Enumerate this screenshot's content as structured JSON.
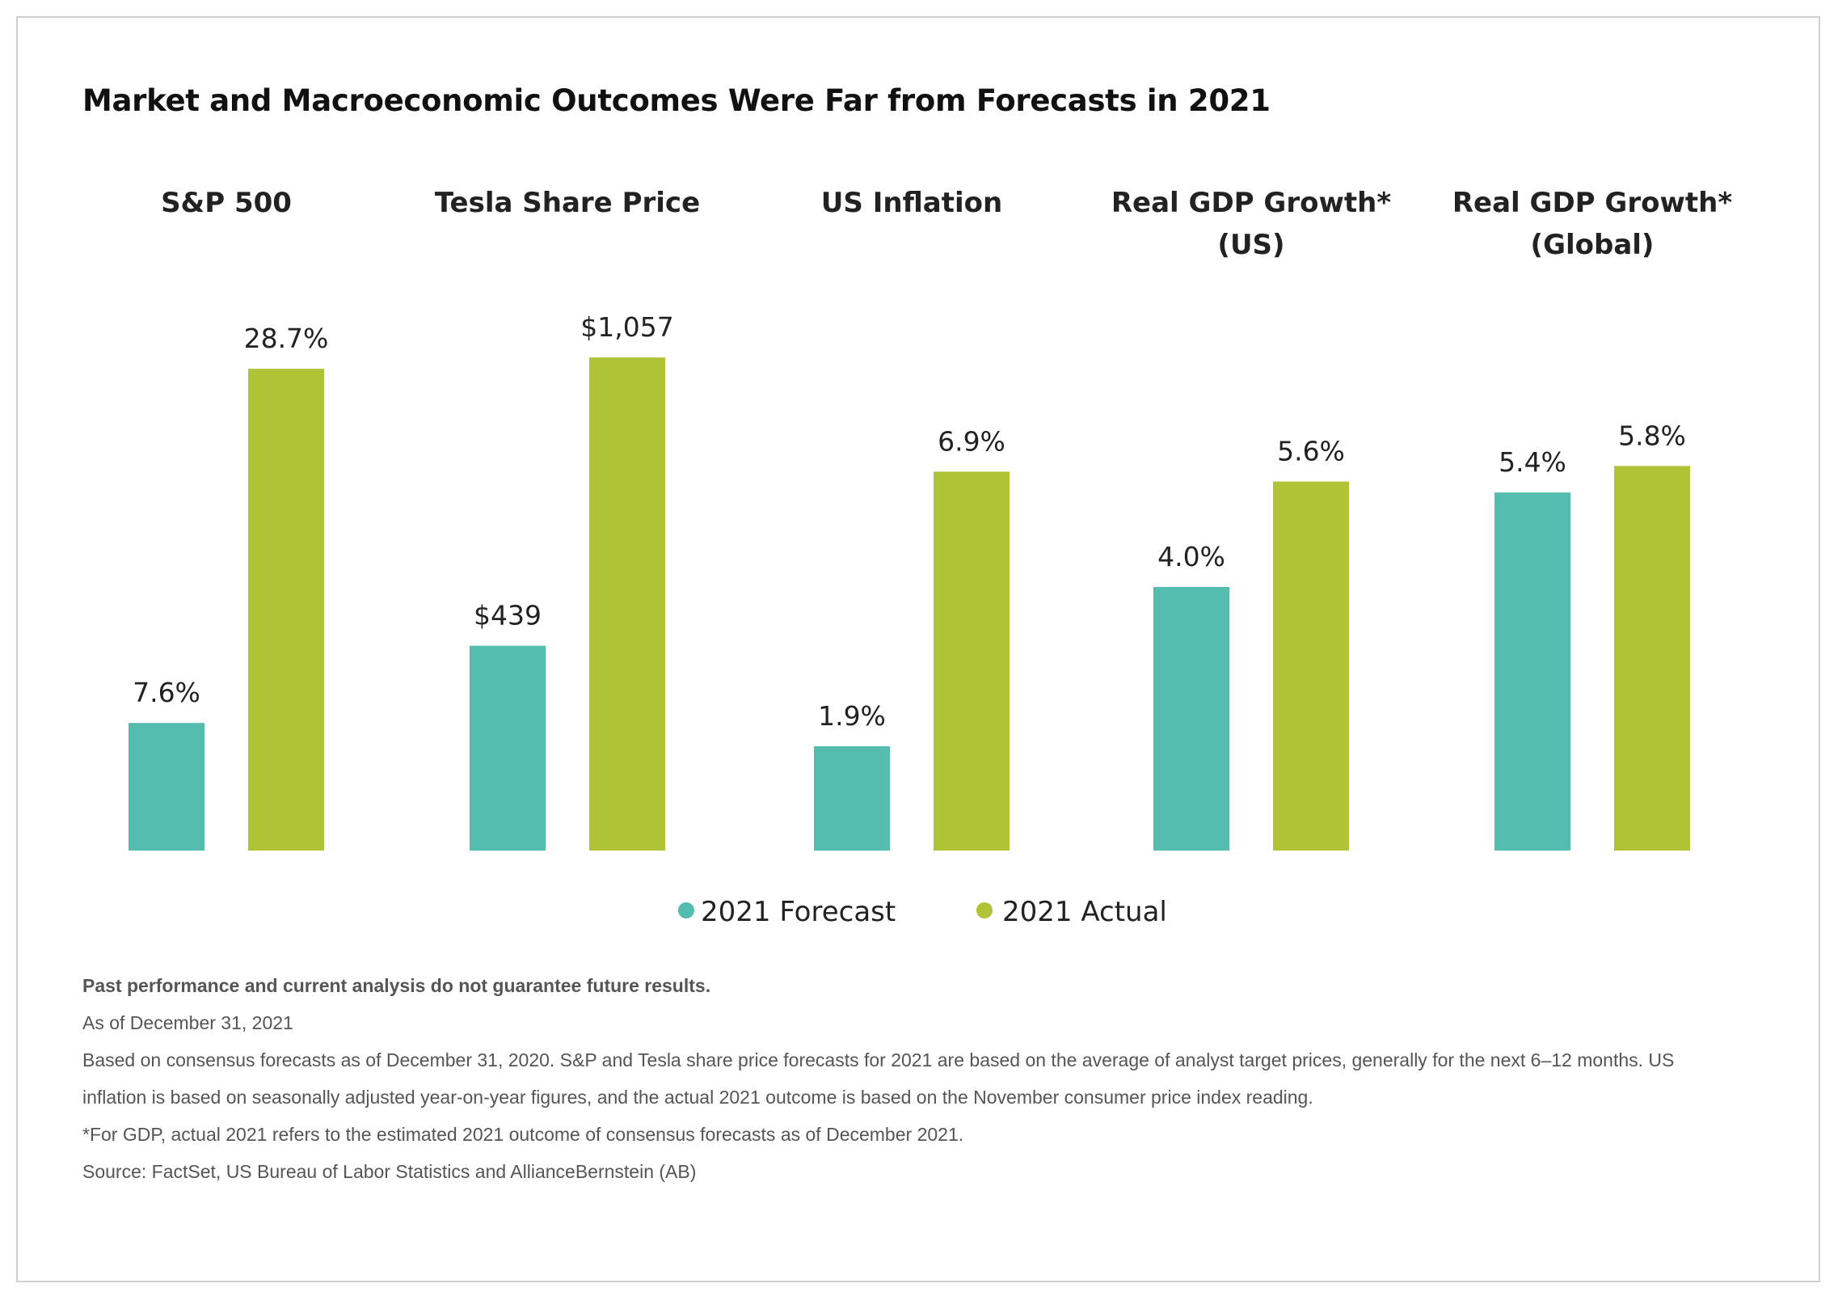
{
  "title": "Market and Macroeconomic Outcomes Were Far from Forecasts in 2021",
  "colors": {
    "forecast": "#55bdb0",
    "actual": "#b0c335"
  },
  "chart_data": {
    "type": "bar",
    "note": "Each panel has its own independent vertical scale.",
    "panels": [
      {
        "title": [
          "S&P 500"
        ],
        "forecast": 7.6,
        "actual": 28.7,
        "forecast_label": "7.6%",
        "actual_label": "28.7%",
        "ymax": 31.4
      },
      {
        "title": [
          "Tesla Share Price"
        ],
        "forecast": 439,
        "actual": 1057,
        "forecast_label": "$439",
        "actual_label": "$1,057",
        "ymax": 1130
      },
      {
        "title": [
          "US Inflation"
        ],
        "forecast": 1.9,
        "actual": 6.9,
        "forecast_label": "1.9%",
        "actual_label": "6.9%",
        "ymax": 9.6
      },
      {
        "title": [
          "Real GDP Growth*",
          "(US)"
        ],
        "forecast": 4.0,
        "actual": 5.6,
        "forecast_label": "4.0%",
        "actual_label": "5.6%",
        "ymax": 8.0
      },
      {
        "title": [
          "Real GDP Growth*",
          "(Global)"
        ],
        "forecast": 5.4,
        "actual": 5.8,
        "forecast_label": "5.4%",
        "actual_label": "5.8%",
        "ymax": 7.95
      }
    ],
    "legend": [
      {
        "name": "2021 Forecast",
        "series": "forecast"
      },
      {
        "name": "2021 Actual",
        "series": "actual"
      }
    ]
  },
  "notes": {
    "disclaimer": "Past performance and current analysis do not guarantee future results.",
    "as_of": "As of December 31, 2021",
    "basis_line1": "Based on consensus forecasts as of December 31, 2020. S&P and Tesla share price forecasts for 2021 are based on the average of analyst target prices, generally for the next 6–12 months. US",
    "basis_line2": "inflation is based on seasonally adjusted year-on-year figures, and the actual 2021 outcome is based on the November consumer price index reading.",
    "gdp": "*For GDP, actual 2021 refers to the estimated 2021 outcome of consensus forecasts as of December 2021.",
    "source": "Source: FactSet, US Bureau of Labor Statistics and AllianceBernstein (AB)"
  }
}
